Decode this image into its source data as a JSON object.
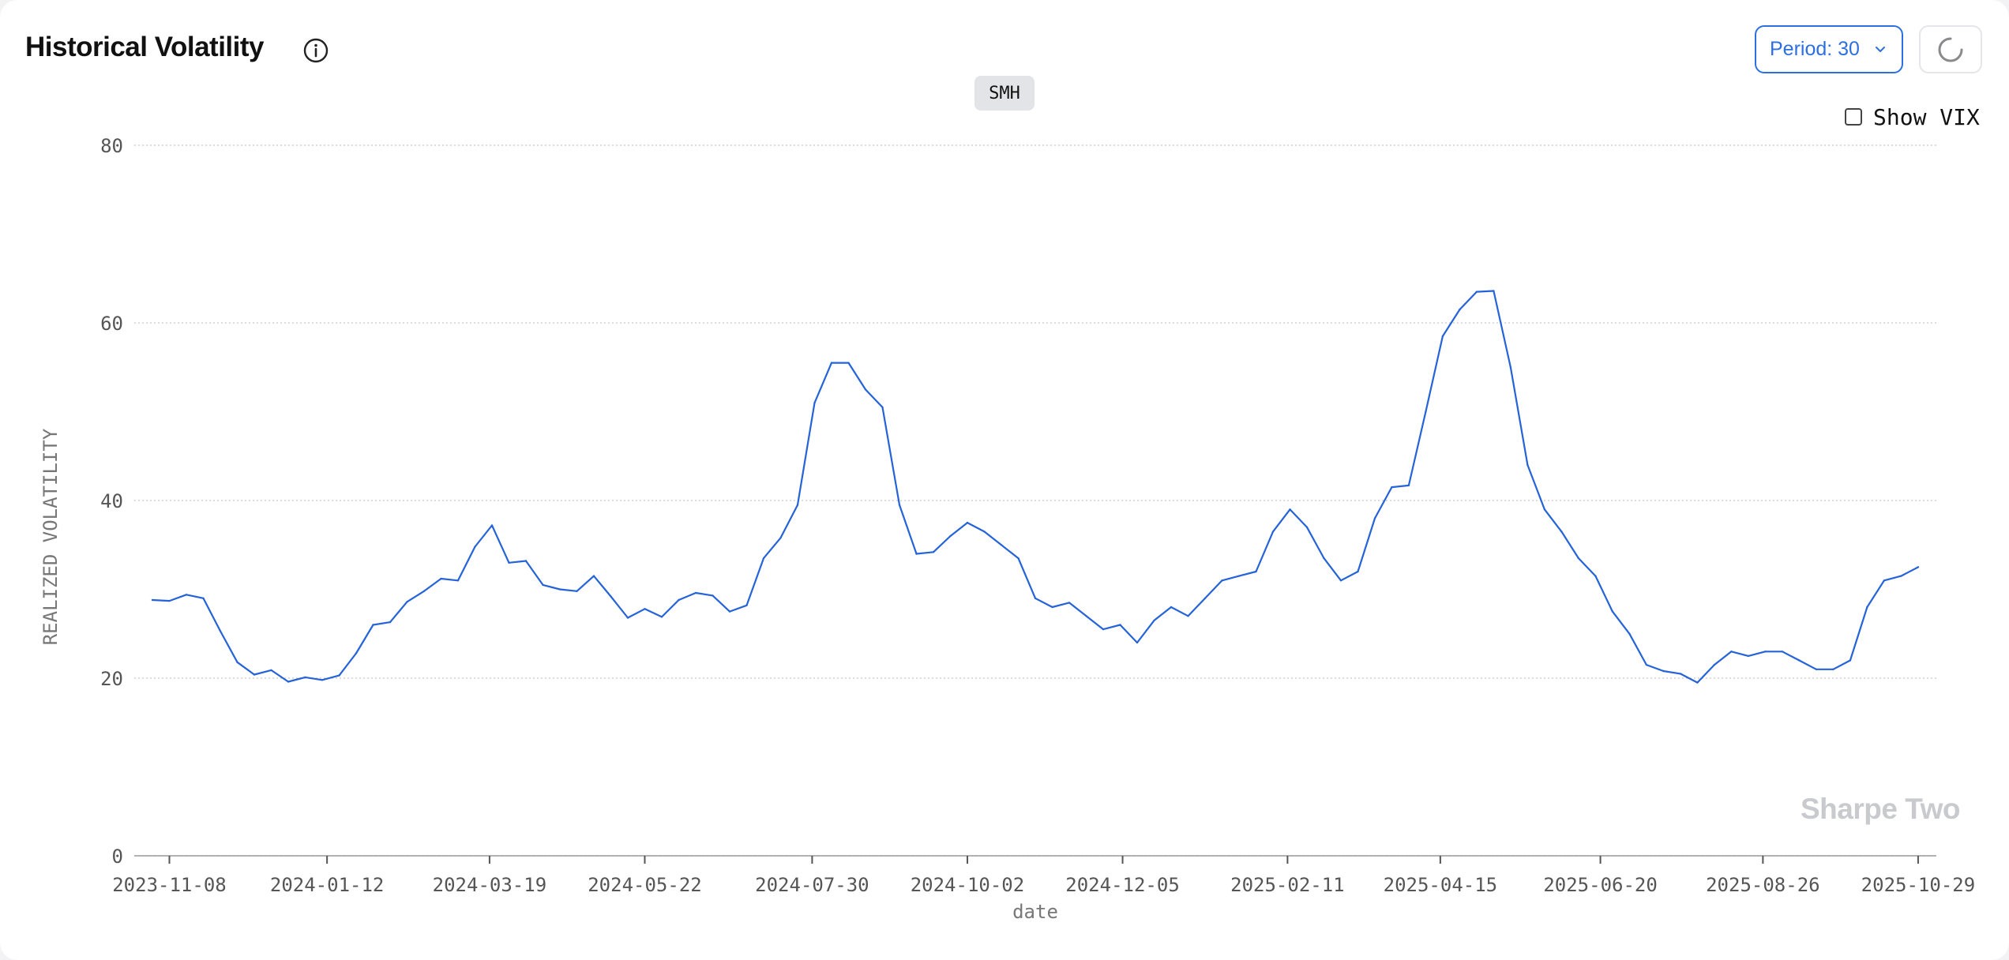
{
  "header": {
    "title": "Historical Volatility",
    "info_icon": "info-circle-icon"
  },
  "controls": {
    "period_label": "Period: 30",
    "period_icon": "chevron-down-icon",
    "refresh_icon": "loading-spinner-icon",
    "show_vix_label": "Show VIX",
    "show_vix_checked": false
  },
  "ticker": "SMH",
  "watermark": "Sharpe Two",
  "colors": {
    "accent": "#2b6fe0",
    "line": "#2563d9",
    "watermark": "#c9cacd",
    "grid": "#c8c8c8"
  },
  "chart_data": {
    "type": "line",
    "xlabel": "date",
    "ylabel": "REALIZED VOLATILITY",
    "ylim": [
      0,
      80
    ],
    "yticks": [
      0,
      20,
      40,
      60,
      80
    ],
    "xticks": [
      "2023-11-08",
      "2024-01-12",
      "2024-03-19",
      "2024-05-22",
      "2024-07-30",
      "2024-10-02",
      "2024-12-05",
      "2025-02-11",
      "2025-04-15",
      "2025-06-20",
      "2025-08-26",
      "2025-10-29"
    ],
    "grid": "horizontal dotted",
    "legend": "none",
    "series": [
      {
        "x": [
          "2023-11-01",
          "2023-11-08",
          "2023-11-15",
          "2023-11-22",
          "2023-11-29",
          "2023-12-06",
          "2023-12-13",
          "2023-12-20",
          "2023-12-27",
          "2024-01-03",
          "2024-01-10",
          "2024-01-17",
          "2024-01-24",
          "2024-01-31",
          "2024-02-07",
          "2024-02-14",
          "2024-02-21",
          "2024-02-28",
          "2024-03-06",
          "2024-03-13",
          "2024-03-20",
          "2024-03-27",
          "2024-04-03",
          "2024-04-10",
          "2024-04-17",
          "2024-04-24",
          "2024-05-01",
          "2024-05-08",
          "2024-05-15",
          "2024-05-22",
          "2024-05-29",
          "2024-06-05",
          "2024-06-12",
          "2024-06-19",
          "2024-06-26",
          "2024-07-03",
          "2024-07-10",
          "2024-07-17",
          "2024-07-24",
          "2024-07-31",
          "2024-08-07",
          "2024-08-14",
          "2024-08-21",
          "2024-08-28",
          "2024-09-04",
          "2024-09-11",
          "2024-09-18",
          "2024-09-25",
          "2024-10-02",
          "2024-10-09",
          "2024-10-16",
          "2024-10-23",
          "2024-10-30",
          "2024-11-06",
          "2024-11-13",
          "2024-11-20",
          "2024-11-27",
          "2024-12-04",
          "2024-12-11",
          "2024-12-18",
          "2024-12-25",
          "2025-01-01",
          "2025-01-08",
          "2025-01-15",
          "2025-01-22",
          "2025-01-29",
          "2025-02-05",
          "2025-02-12",
          "2025-02-19",
          "2025-02-26",
          "2025-03-05",
          "2025-03-12",
          "2025-03-19",
          "2025-03-26",
          "2025-04-02",
          "2025-04-09",
          "2025-04-16",
          "2025-04-23",
          "2025-04-30",
          "2025-05-07",
          "2025-05-14",
          "2025-05-21",
          "2025-05-28",
          "2025-06-04",
          "2025-06-11",
          "2025-06-18",
          "2025-06-25",
          "2025-07-02",
          "2025-07-09",
          "2025-07-16",
          "2025-07-23",
          "2025-07-30",
          "2025-08-06",
          "2025-08-13",
          "2025-08-20",
          "2025-08-27",
          "2025-09-03",
          "2025-09-10",
          "2025-09-17",
          "2025-09-24",
          "2025-10-01",
          "2025-10-08",
          "2025-10-15",
          "2025-10-22",
          "2025-10-29"
        ],
        "y": [
          28.8,
          28.7,
          29.4,
          29.0,
          25.3,
          21.8,
          20.4,
          20.9,
          19.6,
          20.1,
          19.8,
          20.3,
          22.8,
          26.0,
          26.3,
          28.6,
          29.8,
          31.2,
          31.0,
          34.8,
          37.2,
          33.0,
          33.2,
          30.5,
          30.0,
          29.8,
          31.5,
          29.2,
          26.8,
          27.8,
          26.9,
          28.8,
          29.6,
          29.3,
          27.5,
          28.2,
          33.5,
          35.8,
          39.5,
          51.0,
          55.5,
          55.5,
          52.5,
          50.5,
          39.5,
          34.0,
          34.2,
          36.0,
          37.5,
          36.5,
          35.0,
          33.5,
          29.0,
          28.0,
          28.5,
          27.0,
          25.5,
          26.0,
          24.0,
          26.5,
          28.0,
          27.0,
          29.0,
          31.0,
          31.5,
          32.0,
          36.5,
          39.0,
          37.0,
          33.5,
          31.0,
          32.0,
          38.0,
          41.5,
          41.7,
          50.0,
          58.5,
          61.5,
          63.5,
          63.6,
          55.0,
          44.0,
          39.0,
          36.5,
          33.5,
          31.5,
          27.5,
          25.0,
          21.5,
          20.8,
          20.5,
          19.5,
          21.5,
          23.0,
          22.5,
          23.0,
          23.0,
          22.0,
          21.0,
          21.0,
          22.0,
          28.0,
          31.0,
          31.5,
          32.5
        ]
      }
    ]
  }
}
